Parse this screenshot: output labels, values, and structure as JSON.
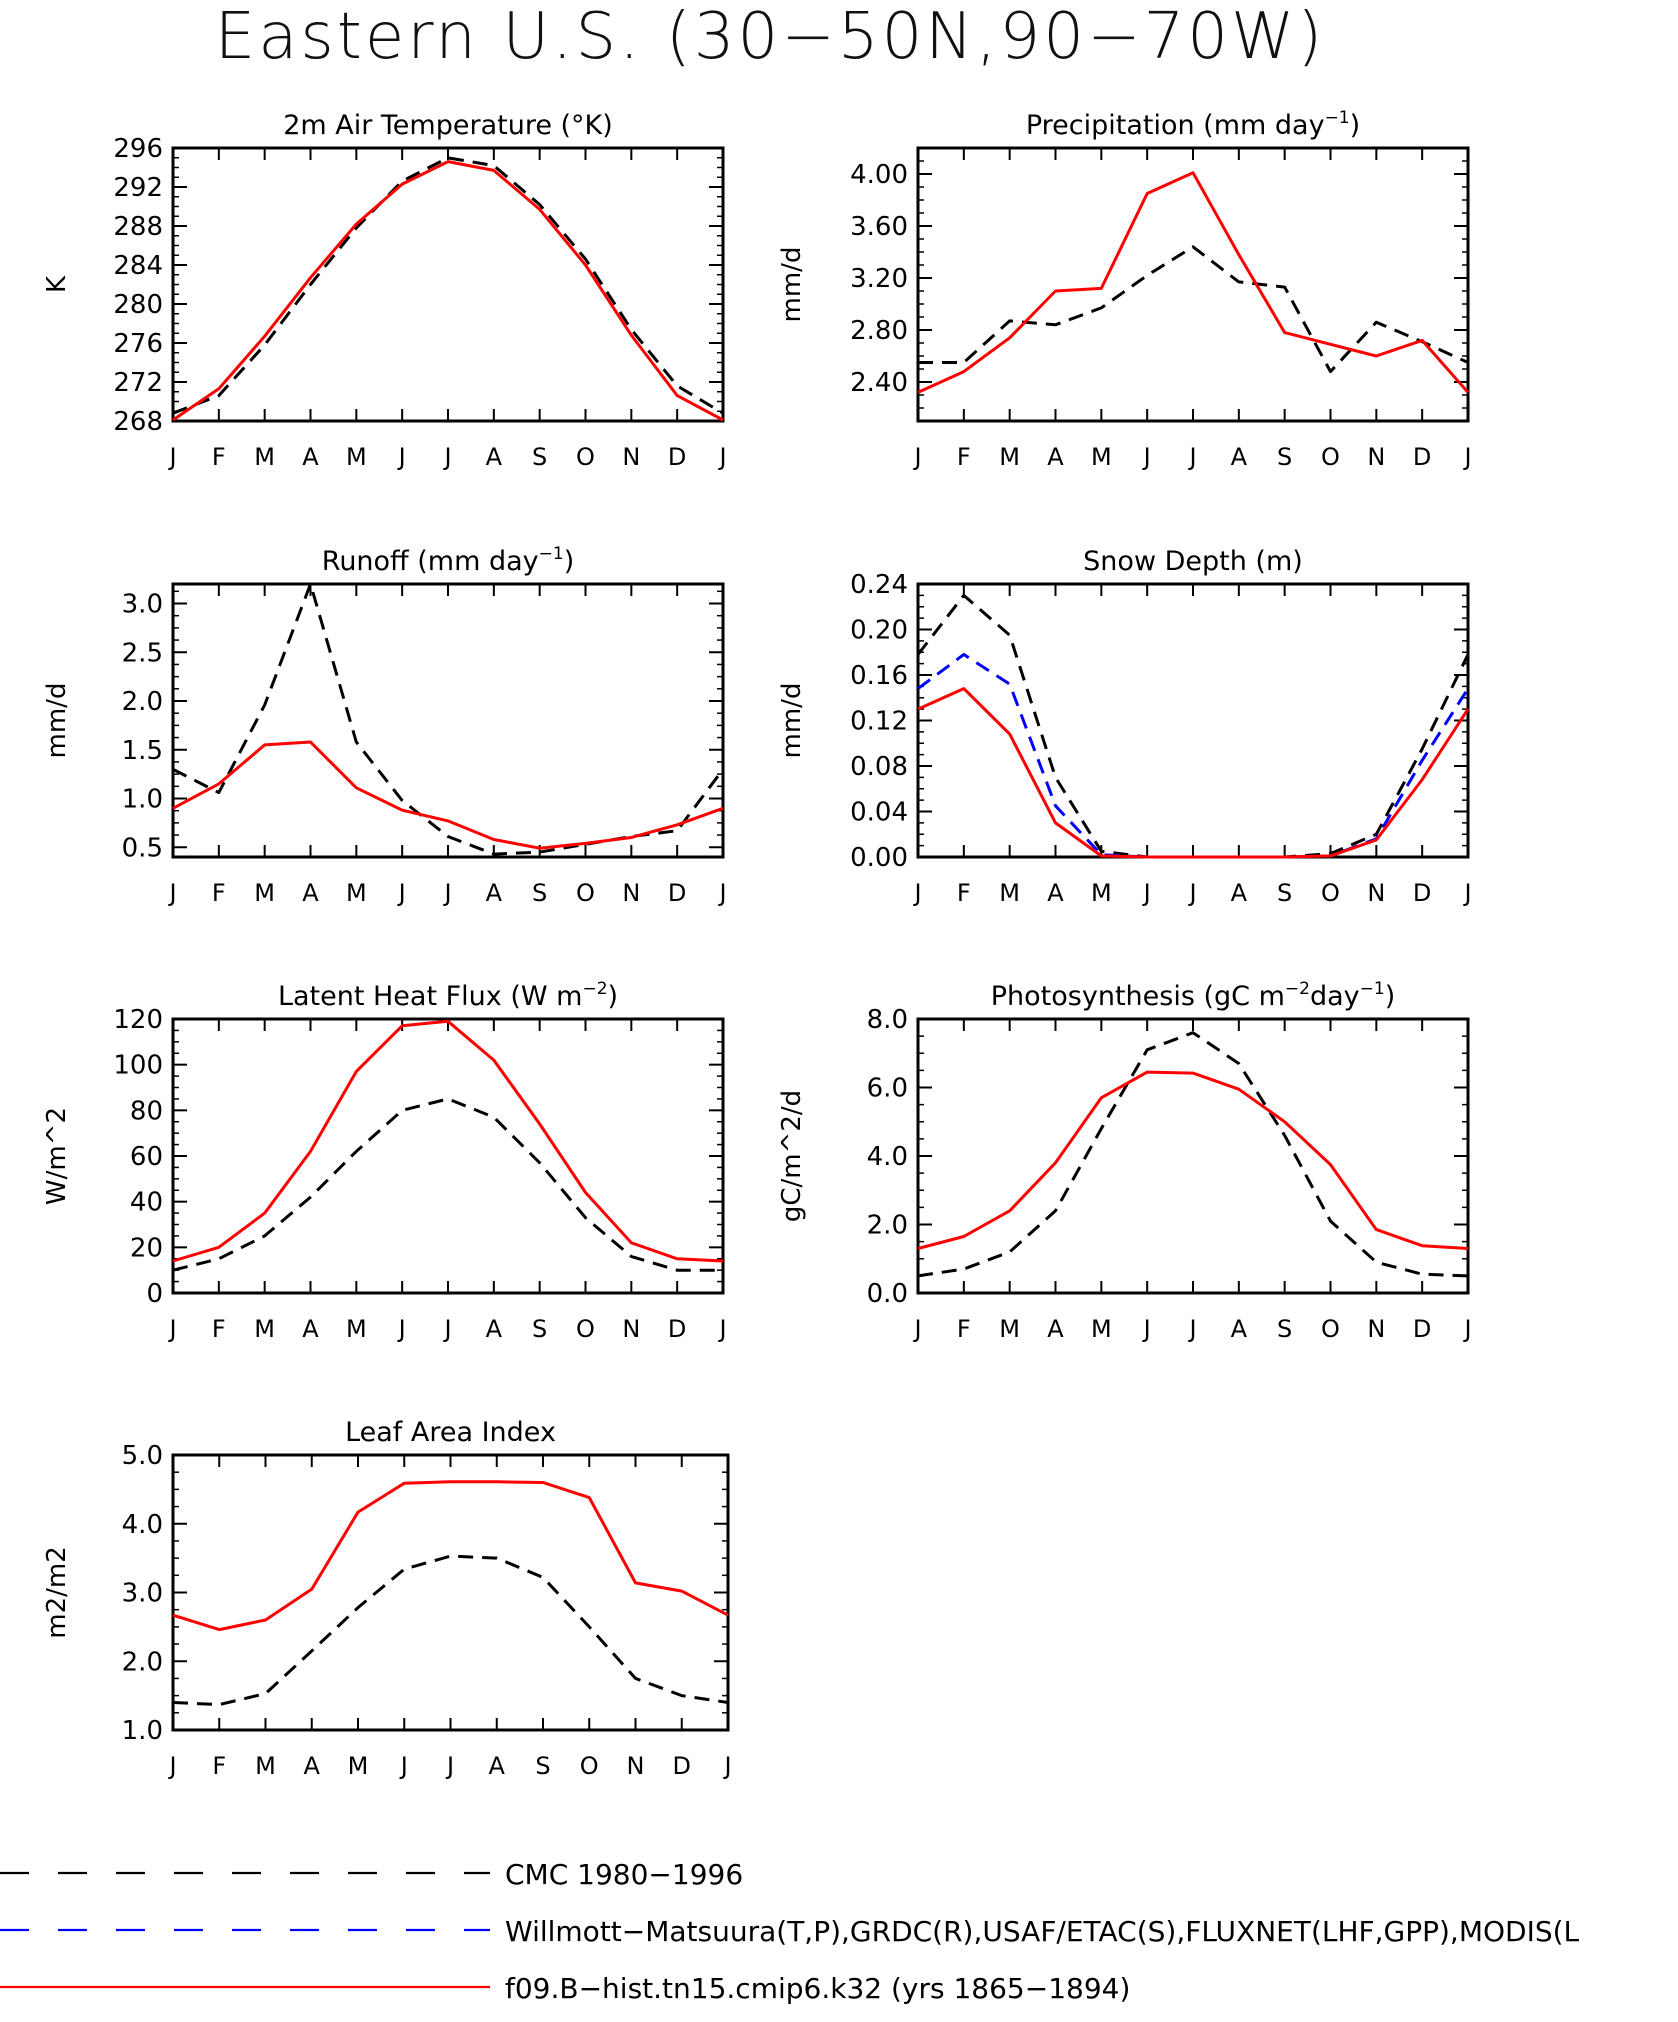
{
  "page": {
    "title": "Eastern U.S. (30−50N,90−70W)"
  },
  "colors": {
    "cmc": "#000000",
    "obs": "#0000ff",
    "model": "#ff0000"
  },
  "months": [
    "J",
    "F",
    "M",
    "A",
    "M",
    "J",
    "J",
    "A",
    "S",
    "O",
    "N",
    "D",
    "J"
  ],
  "legend": [
    {
      "key": "cmc",
      "label": "CMC 1980−1996",
      "color": "#000000",
      "style": "dashed"
    },
    {
      "key": "obs",
      "label": "Willmott−Matsuura(T,P),GRDC(R),USAF/ETAC(S),FLUXNET(LHF,GPP),MODIS(L",
      "color": "#0000ff",
      "style": "dashed"
    },
    {
      "key": "model",
      "label": "f09.B−hist.tn15.cmip6.k32 (yrs 1865−1894)",
      "color": "#ff0000",
      "style": "solid"
    }
  ],
  "chart_data": [
    {
      "type": "line",
      "title": "2m Air Temperature (°K)",
      "ylabel": "K",
      "ylim": [
        268,
        296
      ],
      "yticks": [
        268,
        272,
        276,
        280,
        284,
        288,
        292,
        296
      ],
      "ytick_labels": [
        "268",
        "272",
        "276",
        "280",
        "284",
        "288",
        "292",
        "296"
      ],
      "series": [
        {
          "key": "cmc",
          "values": [
            268.8,
            270.6,
            275.8,
            282.0,
            287.8,
            292.6,
            295.0,
            294.2,
            290.2,
            284.6,
            277.4,
            271.6,
            268.8
          ]
        },
        {
          "key": "model",
          "values": [
            268.1,
            271.3,
            276.7,
            282.7,
            288.2,
            292.3,
            294.6,
            293.7,
            289.7,
            284.0,
            276.8,
            270.6,
            268.1
          ]
        }
      ]
    },
    {
      "type": "line",
      "title": "Precipitation (mm day",
      "title_sup": "−1",
      "title_end": ")",
      "ylabel": "mm/d",
      "ylim": [
        2.1,
        4.2
      ],
      "yticks": [
        2.4,
        2.8,
        3.2,
        3.6,
        4.0
      ],
      "ytick_labels": [
        "2.40",
        "2.80",
        "3.20",
        "3.60",
        "4.00"
      ],
      "series": [
        {
          "key": "cmc",
          "values": [
            2.55,
            2.55,
            2.87,
            2.84,
            2.97,
            3.22,
            3.44,
            3.17,
            3.13,
            2.48,
            2.86,
            2.71,
            2.55
          ]
        },
        {
          "key": "model",
          "values": [
            2.32,
            2.48,
            2.74,
            3.1,
            3.12,
            3.85,
            4.01,
            3.38,
            2.78,
            2.69,
            2.6,
            2.72,
            2.32
          ]
        }
      ]
    },
    {
      "type": "line",
      "title": "Runoff (mm day",
      "title_sup": "−1",
      "title_end": ")",
      "ylabel": "mm/d",
      "ylim": [
        0.4,
        3.2
      ],
      "yticks": [
        0.5,
        1.0,
        1.5,
        2.0,
        2.5,
        3.0
      ],
      "ytick_labels": [
        "0.5",
        "1.0",
        "1.5",
        "2.0",
        "2.5",
        "3.0"
      ],
      "series": [
        {
          "key": "cmc",
          "values": [
            1.3,
            1.06,
            1.96,
            3.2,
            1.58,
            0.98,
            0.61,
            0.43,
            0.45,
            0.53,
            0.61,
            0.67,
            1.3
          ]
        },
        {
          "key": "model",
          "values": [
            0.9,
            1.15,
            1.55,
            1.58,
            1.11,
            0.88,
            0.77,
            0.58,
            0.49,
            0.54,
            0.6,
            0.73,
            0.9
          ]
        }
      ]
    },
    {
      "type": "line",
      "title": "Snow Depth (m)",
      "ylabel": "mm/d",
      "ylim": [
        0.0,
        0.24
      ],
      "yticks": [
        0.0,
        0.04,
        0.08,
        0.12,
        0.16,
        0.2,
        0.24
      ],
      "ytick_labels": [
        "0.00",
        "0.04",
        "0.08",
        "0.12",
        "0.16",
        "0.20",
        "0.24"
      ],
      "series": [
        {
          "key": "cmc",
          "values": [
            0.178,
            0.23,
            0.195,
            0.07,
            0.005,
            0.0,
            0.0,
            0.0,
            0.0,
            0.003,
            0.02,
            0.095,
            0.178
          ]
        },
        {
          "key": "obs",
          "values": [
            0.148,
            0.178,
            0.152,
            0.045,
            0.002,
            0.0,
            0.0,
            0.0,
            0.0,
            0.001,
            0.016,
            0.085,
            0.148
          ]
        },
        {
          "key": "model",
          "values": [
            0.13,
            0.148,
            0.108,
            0.03,
            0.001,
            0.0,
            0.0,
            0.0,
            0.0,
            0.001,
            0.015,
            0.068,
            0.13
          ]
        }
      ]
    },
    {
      "type": "line",
      "title": "Latent Heat Flux (W m",
      "title_sup": "−2",
      "title_end": ")",
      "ylabel": "W/m^2",
      "ylim": [
        0,
        120
      ],
      "yticks": [
        0,
        20,
        40,
        60,
        80,
        100,
        120
      ],
      "ytick_labels": [
        "0",
        "20",
        "40",
        "60",
        "80",
        "100",
        "120"
      ],
      "series": [
        {
          "key": "cmc",
          "values": [
            10,
            15,
            25,
            42,
            62,
            80,
            85,
            77,
            57,
            33,
            16,
            10,
            10
          ]
        },
        {
          "key": "model",
          "values": [
            14,
            20,
            35,
            62,
            97,
            117,
            119,
            102,
            74,
            44,
            22,
            15,
            14
          ]
        }
      ]
    },
    {
      "type": "line",
      "title": "Photosynthesis (gC m",
      "title_sup": "−2",
      "title_mid": "day",
      "title_sup2": "−1",
      "title_end": ")",
      "ylabel": "gC/m^2/d",
      "ylim": [
        0.0,
        8.0
      ],
      "yticks": [
        0.0,
        2.0,
        4.0,
        6.0,
        8.0
      ],
      "ytick_labels": [
        "0.0",
        "2.0",
        "4.0",
        "6.0",
        "8.0"
      ],
      "series": [
        {
          "key": "cmc",
          "values": [
            0.5,
            0.7,
            1.2,
            2.4,
            4.8,
            7.1,
            7.6,
            6.7,
            4.6,
            2.1,
            0.9,
            0.55,
            0.5
          ]
        },
        {
          "key": "model",
          "values": [
            1.3,
            1.65,
            2.4,
            3.8,
            5.7,
            6.45,
            6.42,
            5.95,
            5.0,
            3.75,
            1.85,
            1.38,
            1.3
          ]
        }
      ]
    },
    {
      "type": "line",
      "title": "Leaf Area Index",
      "ylabel": "m2/m2",
      "ylim": [
        1.0,
        5.0
      ],
      "yticks": [
        1.0,
        2.0,
        3.0,
        4.0,
        5.0
      ],
      "ytick_labels": [
        "1.0",
        "2.0",
        "3.0",
        "4.0",
        "5.0"
      ],
      "series": [
        {
          "key": "cmc",
          "values": [
            1.4,
            1.37,
            1.53,
            2.15,
            2.78,
            3.34,
            3.53,
            3.5,
            3.22,
            2.5,
            1.75,
            1.5,
            1.4
          ]
        },
        {
          "key": "model",
          "values": [
            2.67,
            2.46,
            2.6,
            3.05,
            4.17,
            4.59,
            4.61,
            4.61,
            4.6,
            4.38,
            3.14,
            3.02,
            2.67
          ]
        }
      ]
    }
  ]
}
